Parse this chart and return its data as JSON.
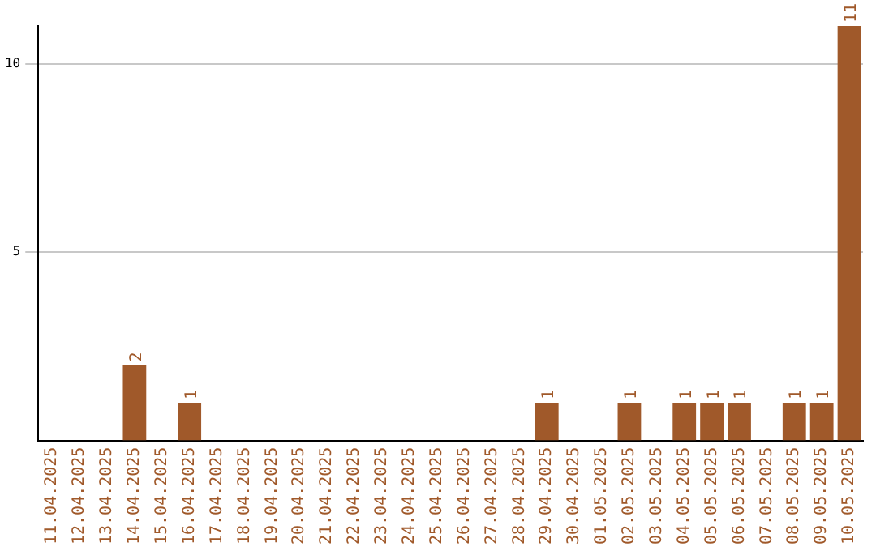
{
  "chart_data": {
    "type": "bar",
    "categories": [
      "11.04.2025",
      "12.04.2025",
      "13.04.2025",
      "14.04.2025",
      "15.04.2025",
      "16.04.2025",
      "17.04.2025",
      "18.04.2025",
      "19.04.2025",
      "20.04.2025",
      "21.04.2025",
      "22.04.2025",
      "23.04.2025",
      "24.04.2025",
      "25.04.2025",
      "26.04.2025",
      "27.04.2025",
      "28.04.2025",
      "29.04.2025",
      "30.04.2025",
      "01.05.2025",
      "02.05.2025",
      "03.05.2025",
      "04.05.2025",
      "05.05.2025",
      "06.05.2025",
      "07.05.2025",
      "08.05.2025",
      "09.05.2025",
      "10.05.2025"
    ],
    "values": [
      0,
      0,
      0,
      2,
      0,
      1,
      0,
      0,
      0,
      0,
      0,
      0,
      0,
      0,
      0,
      0,
      0,
      0,
      1,
      0,
      0,
      1,
      0,
      1,
      1,
      1,
      0,
      1,
      1,
      11
    ],
    "color": "#a0592a",
    "value_labels": [
      null,
      null,
      null,
      "2",
      null,
      "1",
      null,
      null,
      null,
      null,
      null,
      null,
      null,
      null,
      null,
      null,
      null,
      null,
      "1",
      null,
      null,
      "1",
      null,
      "1",
      "1",
      "1",
      null,
      "1",
      "1",
      "11"
    ],
    "ylim": [
      0,
      11
    ],
    "yticks": [
      5,
      10
    ],
    "grid": "y",
    "legend": false
  }
}
